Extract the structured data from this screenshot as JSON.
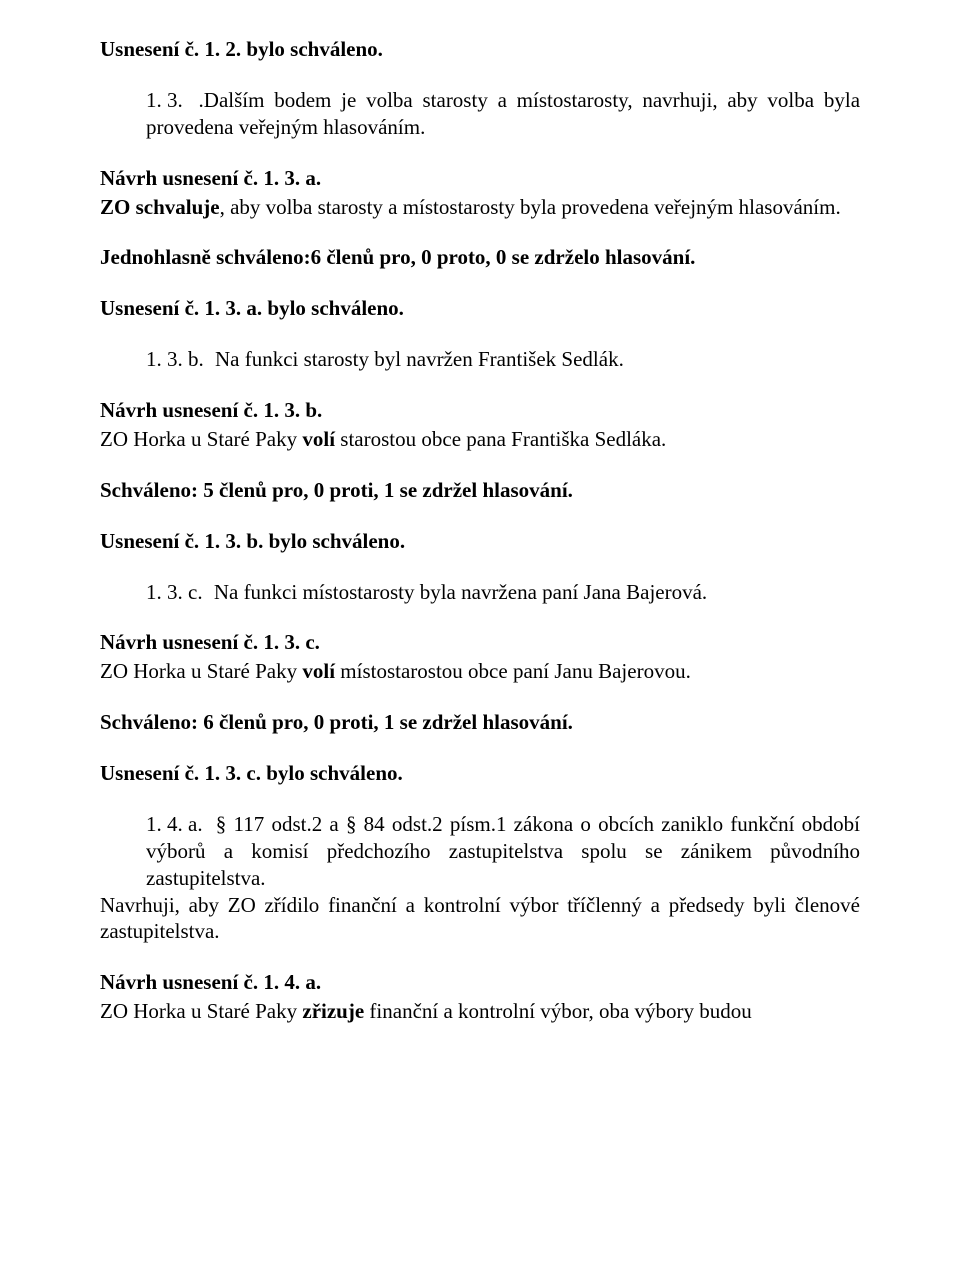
{
  "p1": "Usnesení č. 1. 2. bylo schváleno.",
  "p2_num": "1. 3.",
  "p2_text": ".Dalším bodem je volba starosty a místostarosty, navrhuji, aby volba byla provedena veřejným hlasováním.",
  "p3_a": "Návrh usnesení č. 1. 3. a.",
  "p3_b1": "ZO schvaluje",
  "p3_b2": ", aby volba starosty a místostarosty byla provedena veřejným hlasováním.",
  "p4": "Jednohlasně schváleno:6 členů pro, 0 proto, 0 se zdrželo hlasování.",
  "p5": "Usnesení č. 1. 3. a. bylo schváleno.",
  "p6_num": "1. 3. b.",
  "p6_text": "Na funkci starosty byl navržen František Sedlák.",
  "p7_a": "Návrh usnesení č. 1. 3. b.",
  "p7_b1": "ZO Horka u Staré Paky ",
  "p7_b2": "volí",
  "p7_b3": " starostou obce pana Františka Sedláka.",
  "p8": "Schváleno: 5 členů pro, 0 proti, 1 se zdržel hlasování.",
  "p9": "Usnesení č. 1. 3. b. bylo schváleno.",
  "p10_num": "1. 3. c.",
  "p10_text": "Na funkci místostarosty byla navržena paní Jana Bajerová.",
  "p11_a": "Návrh usnesení č. 1. 3. c.",
  "p11_b1": "ZO Horka u Staré Paky ",
  "p11_b2": "volí",
  "p11_b3": " místostarostou obce paní Janu Bajerovou.",
  "p12": "Schváleno: 6 členů pro, 0 proti, 1 se zdržel hlasování.",
  "p13": "Usnesení č. 1. 3. c. bylo schváleno.",
  "p14_num": "1. 4. a.",
  "p14_text": "§ 117 odst.2 a § 84 odst.2 písm.1 zákona o obcích zaniklo funkční období výborů a komisí předchozího zastupitelstva spolu se zánikem původního zastupitelstva.",
  "p14_tail": "Navrhuji, aby ZO zřídilo finanční a kontrolní výbor tříčlenný a předsedy byli členové zastupitelstva.",
  "p15_a": "Návrh usnesení č. 1. 4. a.",
  "p15_b1": "ZO Horka u Staré Paky ",
  "p15_b2": "zřizuje",
  "p15_b3": " finanční a kontrolní výbor, oba výbory budou"
}
